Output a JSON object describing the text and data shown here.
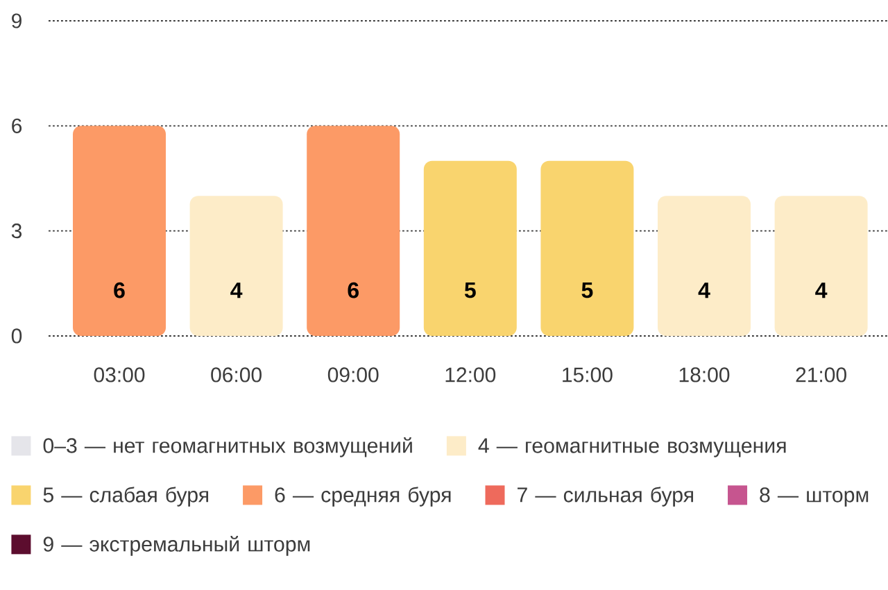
{
  "chart_data": {
    "type": "bar",
    "categories": [
      "03:00",
      "06:00",
      "09:00",
      "12:00",
      "15:00",
      "18:00",
      "21:00"
    ],
    "series": [
      {
        "name": "0–3 — нет геомагнитных возмущений",
        "color": "#e5e5ea",
        "values": [
          null,
          null,
          null,
          null,
          null,
          null,
          null
        ]
      },
      {
        "name": "4 — геомагнитные возмущения",
        "color": "#fdecc8",
        "values": [
          null,
          4,
          null,
          null,
          null,
          4,
          4
        ]
      },
      {
        "name": "5 — слабая буря",
        "color": "#f9d46e",
        "values": [
          null,
          null,
          null,
          5,
          5,
          null,
          null
        ]
      },
      {
        "name": "6 — средняя буря",
        "color": "#fc9a66",
        "values": [
          6,
          null,
          6,
          null,
          null,
          null,
          null
        ]
      },
      {
        "name": "7 — сильная буря",
        "color": "#ee6a5c",
        "values": [
          null,
          null,
          null,
          null,
          null,
          null,
          null
        ]
      },
      {
        "name": "8 — шторм",
        "color": "#c6558f",
        "values": [
          null,
          null,
          null,
          null,
          null,
          null,
          null
        ]
      },
      {
        "name": "9 — экстремальный шторм",
        "color": "#5c0d2e",
        "values": [
          null,
          null,
          null,
          null,
          null,
          null,
          null
        ]
      }
    ],
    "stacked": true,
    "ylim": [
      0,
      9
    ],
    "yticks": [
      0,
      3,
      6,
      9
    ],
    "grid": "y",
    "data_labels": true,
    "legend": "bottom"
  }
}
